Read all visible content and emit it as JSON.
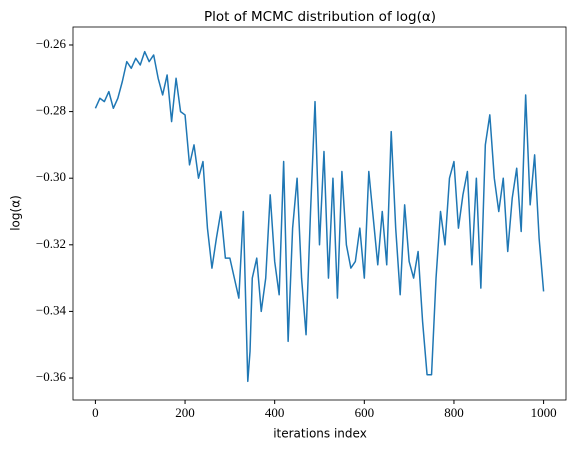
{
  "chart_data": {
    "type": "line",
    "title": "Plot of MCMC distribution of log(α)",
    "xlabel": "iterations index",
    "ylabel": "log(α)",
    "x": [
      0,
      10,
      20,
      30,
      40,
      50,
      60,
      70,
      80,
      90,
      100,
      110,
      120,
      130,
      140,
      150,
      160,
      170,
      180,
      190,
      200,
      210,
      220,
      230,
      240,
      250,
      260,
      270,
      280,
      290,
      300,
      310,
      320,
      330,
      340,
      345,
      350,
      360,
      370,
      380,
      390,
      400,
      410,
      420,
      430,
      440,
      450,
      460,
      470,
      480,
      490,
      500,
      510,
      520,
      530,
      540,
      550,
      560,
      570,
      580,
      590,
      600,
      610,
      620,
      630,
      640,
      650,
      660,
      670,
      680,
      690,
      700,
      710,
      720,
      730,
      740,
      750,
      760,
      770,
      780,
      790,
      800,
      810,
      820,
      830,
      840,
      850,
      860,
      870,
      880,
      890,
      900,
      910,
      920,
      930,
      940,
      950,
      960,
      970,
      980,
      990,
      1000
    ],
    "series": [
      {
        "name": "log(α)",
        "color": "#1f77b4",
        "values": [
          -0.279,
          -0.276,
          -0.277,
          -0.274,
          -0.279,
          -0.276,
          -0.271,
          -0.265,
          -0.267,
          -0.264,
          -0.266,
          -0.262,
          -0.265,
          -0.263,
          -0.27,
          -0.275,
          -0.269,
          -0.283,
          -0.27,
          -0.28,
          -0.281,
          -0.296,
          -0.29,
          -0.3,
          -0.295,
          -0.315,
          -0.327,
          -0.318,
          -0.31,
          -0.324,
          -0.324,
          -0.33,
          -0.336,
          -0.31,
          -0.361,
          -0.352,
          -0.33,
          -0.324,
          -0.34,
          -0.33,
          -0.305,
          -0.325,
          -0.335,
          -0.295,
          -0.349,
          -0.315,
          -0.3,
          -0.33,
          -0.347,
          -0.31,
          -0.277,
          -0.32,
          -0.292,
          -0.33,
          -0.3,
          -0.336,
          -0.298,
          -0.32,
          -0.327,
          -0.325,
          -0.315,
          -0.33,
          -0.298,
          -0.312,
          -0.326,
          -0.31,
          -0.326,
          -0.286,
          -0.315,
          -0.335,
          -0.308,
          -0.325,
          -0.33,
          -0.322,
          -0.343,
          -0.359,
          -0.359,
          -0.33,
          -0.31,
          -0.32,
          -0.3,
          -0.295,
          -0.315,
          -0.305,
          -0.298,
          -0.326,
          -0.3,
          -0.333,
          -0.29,
          -0.281,
          -0.3,
          -0.31,
          -0.3,
          -0.322,
          -0.306,
          -0.297,
          -0.316,
          -0.275,
          -0.308,
          -0.293,
          -0.318,
          -0.334
        ]
      }
    ],
    "xlim": [
      -50,
      1050
    ],
    "ylim": [
      -0.3666,
      -0.2546
    ],
    "xticks": [
      0,
      200,
      400,
      600,
      800,
      1000
    ],
    "yticks": [
      {
        "value": -0.36,
        "label": "−0.36"
      },
      {
        "value": -0.34,
        "label": "−0.34"
      },
      {
        "value": -0.32,
        "label": "−0.32"
      },
      {
        "value": -0.3,
        "label": "−0.30"
      },
      {
        "value": -0.28,
        "label": "−0.28"
      },
      {
        "value": -0.26,
        "label": "−0.26"
      }
    ],
    "grid": false
  }
}
